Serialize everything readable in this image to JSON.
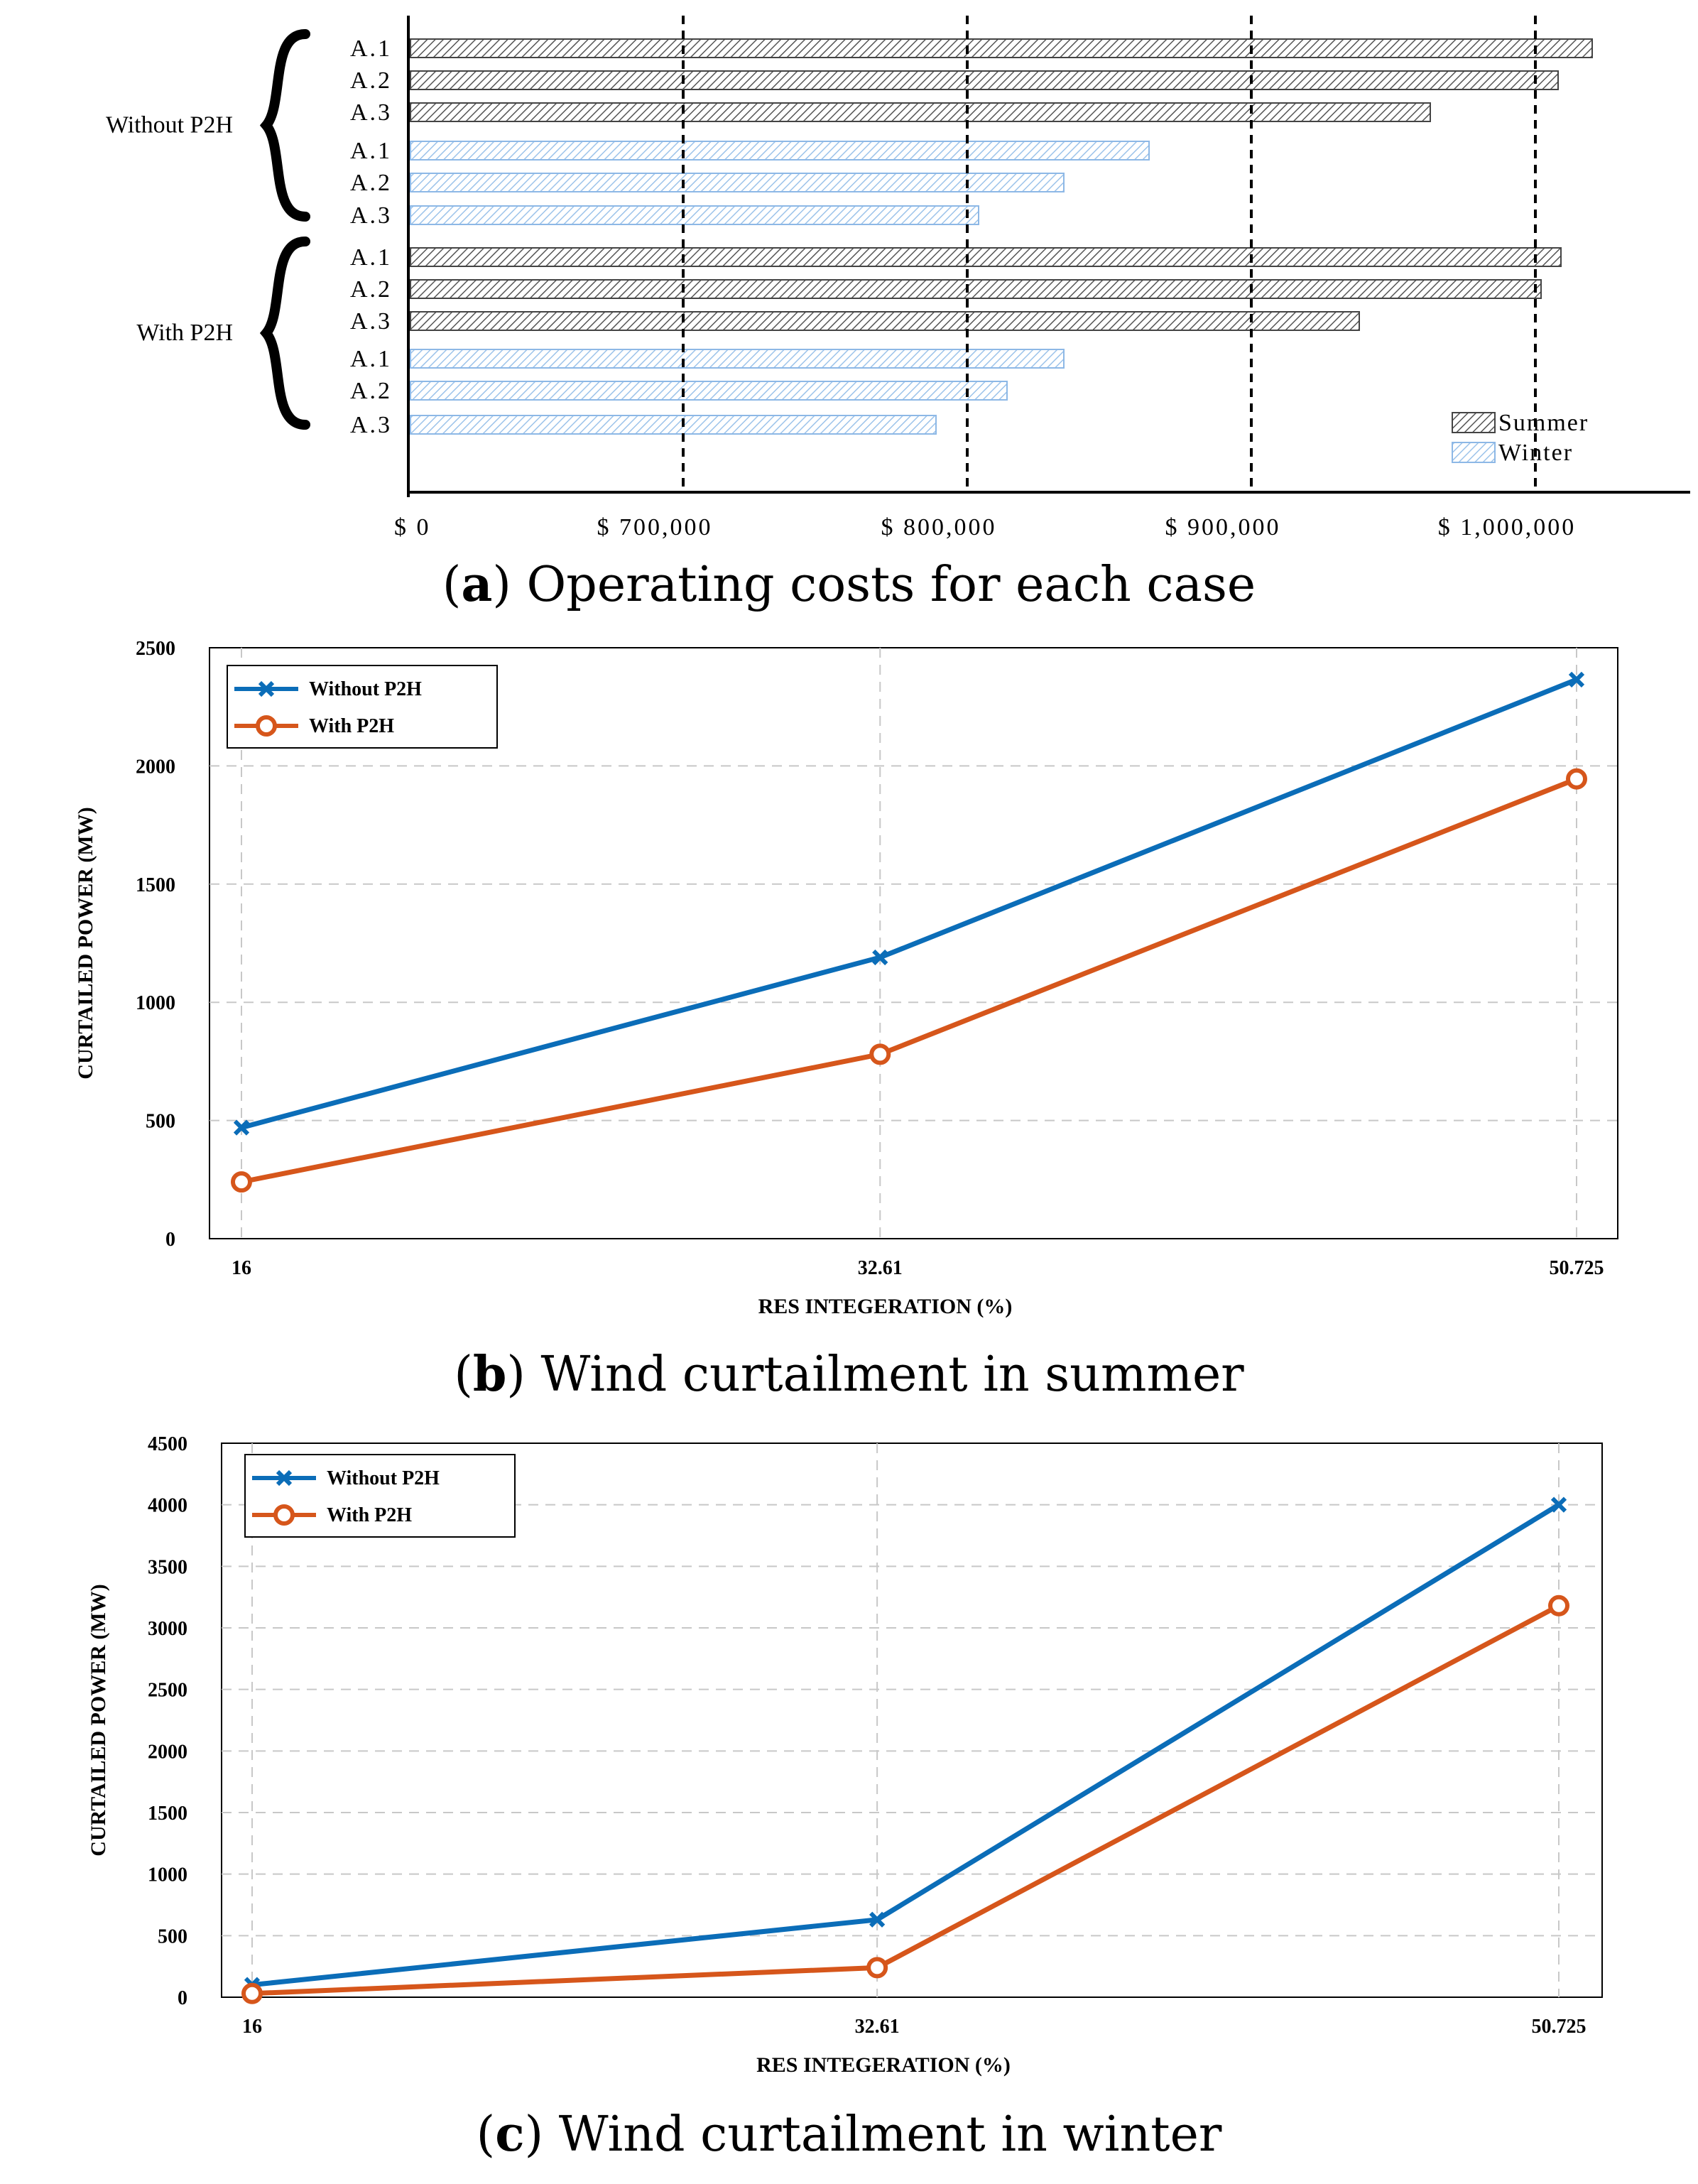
{
  "colors": {
    "summer": "#555555",
    "winter": "#7fb0e0",
    "without": "#0b6db8",
    "with": "#d6561b",
    "grid": "#c8c8c8"
  },
  "chart_data": [
    {
      "type": "bar",
      "orientation": "horizontal",
      "caption_letter": "a",
      "caption_text": " Operating costs for each case",
      "groups": [
        "Without P2H",
        "With P2H"
      ],
      "categories": [
        "A.1",
        "A.2",
        "A.3",
        "A.1",
        "A.2",
        "A.3",
        "A.1",
        "A.2",
        "A.3",
        "A.1",
        "A.2",
        "A.3"
      ],
      "series_of_bar": [
        "Summer",
        "Summer",
        "Summer",
        "Winter",
        "Winter",
        "Winter",
        "Summer",
        "Summer",
        "Summer",
        "Winter",
        "Winter",
        "Winter"
      ],
      "values": [
        1020000,
        1008000,
        963000,
        864000,
        834000,
        804000,
        1009000,
        1002000,
        938000,
        834000,
        814000,
        789000
      ],
      "legend": [
        "Summer",
        "Winter"
      ],
      "legend_position": "bottom-right",
      "xticks": [
        {
          "value": 700000,
          "label": "$ 700,000"
        },
        {
          "value": 800000,
          "label": "$ 800,000"
        },
        {
          "value": 900000,
          "label": "$ 900,000"
        },
        {
          "value": 1000000,
          "label": "$ 1,000,000"
        }
      ],
      "zero_label": "$ 0",
      "axis_break": "0 to 600000 omitted"
    },
    {
      "type": "line",
      "caption_letter": "b",
      "caption_text": " Wind curtailment in summer",
      "x": [
        16,
        32.61,
        50.725
      ],
      "xtick_labels": [
        "16",
        "32.61",
        "50.725"
      ],
      "xlabel": "RES INTEGERATION (%)",
      "ylabel": "CURTAILED POWER (MW)",
      "ylim": [
        0,
        2500
      ],
      "yticks": [
        0,
        500,
        1000,
        1500,
        2000,
        2500
      ],
      "series": [
        {
          "name": "Without P2H",
          "marker": "x",
          "values": [
            470,
            1190,
            2365
          ]
        },
        {
          "name": "With P2H",
          "marker": "o",
          "values": [
            240,
            780,
            1945
          ]
        }
      ],
      "legend_position": "top-left",
      "grid": true
    },
    {
      "type": "line",
      "caption_letter": "c",
      "caption_text": " Wind curtailment in winter",
      "x": [
        16,
        32.61,
        50.725
      ],
      "xtick_labels": [
        "16",
        "32.61",
        "50.725"
      ],
      "xlabel": "RES INTEGERATION (%)",
      "ylabel": "CURTAILED POWER (MW)",
      "ylim": [
        0,
        4500
      ],
      "yticks": [
        0,
        500,
        1000,
        1500,
        2000,
        2500,
        3000,
        3500,
        4000,
        4500
      ],
      "series": [
        {
          "name": "Without P2H",
          "marker": "x",
          "values": [
            100,
            630,
            4000
          ]
        },
        {
          "name": "With P2H",
          "marker": "o",
          "values": [
            30,
            240,
            3180
          ]
        }
      ],
      "legend_position": "top-left",
      "grid": true
    }
  ]
}
